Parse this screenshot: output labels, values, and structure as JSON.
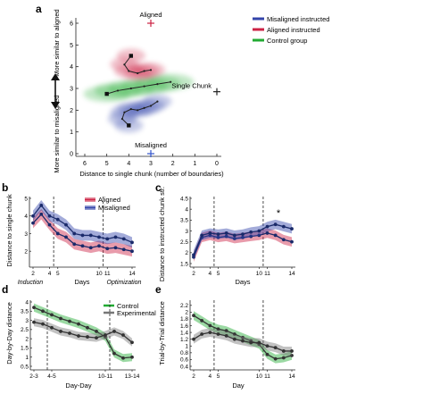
{
  "panel_letters": [
    "a",
    "b",
    "c",
    "d",
    "e"
  ],
  "chart_data": [
    {
      "panel": "a",
      "type": "scatter",
      "xlabel": "Distance to single chunk (number of boundaries)",
      "ylabel_top": "More similar to aligned",
      "ylabel_bottom": "More similar to misaligned",
      "xlim": [
        6,
        0
      ],
      "ylim": [
        0,
        6
      ],
      "xticks": [
        6,
        5,
        4,
        3,
        2,
        1,
        0
      ],
      "yticks": [
        0,
        1,
        2,
        3,
        4,
        5,
        6
      ],
      "markers": [
        {
          "label": "Aligned",
          "x": 3.0,
          "y": 6.0,
          "color": "#cc2244"
        },
        {
          "label": "Single Chunk",
          "x": 0.0,
          "y": 2.85,
          "color": "#222222"
        },
        {
          "label": "Misaligned",
          "x": 3.0,
          "y": 0.0,
          "color": "#3355cc"
        }
      ],
      "series": [
        {
          "name": "Misaligned instructed",
          "color": "#3344aa",
          "x": [
            4.0,
            4.3,
            4.2,
            3.9,
            3.6,
            3.3,
            3.0,
            2.7
          ],
          "y": [
            1.3,
            1.6,
            1.9,
            2.05,
            2.0,
            2.1,
            2.2,
            2.4
          ]
        },
        {
          "name": "Aligned instructed",
          "color": "#cc2244",
          "x": [
            3.9,
            4.2,
            4.0,
            3.6,
            3.3,
            3.0
          ],
          "y": [
            4.5,
            4.1,
            3.8,
            3.7,
            3.8,
            3.85
          ]
        },
        {
          "name": "Control group",
          "color": "#22aa33",
          "x": [
            5.0,
            4.5,
            3.9,
            3.3,
            2.7,
            2.1
          ],
          "y": [
            2.75,
            2.9,
            3.0,
            3.1,
            3.2,
            3.3
          ]
        }
      ]
    },
    {
      "panel": "b",
      "type": "line",
      "ylabel": "Distance to single chunk",
      "xlabel": "Days",
      "x": [
        2,
        3,
        4,
        5,
        6,
        7,
        8,
        9,
        10,
        11,
        12,
        13,
        14
      ],
      "xticks": [
        2,
        4,
        5,
        10,
        11,
        14
      ],
      "ylim": [
        1.3,
        5
      ],
      "yticks": [
        2,
        3,
        4,
        5
      ],
      "dashed_at": [
        4.5,
        10.5
      ],
      "phase_labels": [
        "Induction",
        "Optimization"
      ],
      "series": [
        {
          "name": "Aligned",
          "color": "#cc2244",
          "values": [
            3.6,
            4.1,
            3.5,
            3.0,
            2.8,
            2.4,
            2.3,
            2.2,
            2.3,
            2.15,
            2.2,
            2.1,
            2.0
          ]
        },
        {
          "name": "Misaligned",
          "color": "#3344aa",
          "values": [
            4.0,
            4.6,
            4.0,
            3.8,
            3.5,
            3.0,
            2.9,
            2.9,
            2.8,
            2.7,
            2.8,
            2.7,
            2.5
          ]
        }
      ]
    },
    {
      "panel": "c",
      "type": "line",
      "ylabel": "Distance to instructed chunk str.",
      "xlabel": "Days",
      "x": [
        2,
        3,
        4,
        5,
        6,
        7,
        8,
        9,
        10,
        11,
        12,
        13,
        14
      ],
      "xticks": [
        2,
        4,
        5,
        10,
        11,
        14
      ],
      "ylim": [
        1.5,
        4.5
      ],
      "yticks": [
        1.5,
        2,
        2.5,
        3,
        3.5,
        4,
        4.5
      ],
      "dashed_at": [
        4.5,
        10.5
      ],
      "annotation": "*",
      "series": [
        {
          "name": "Aligned",
          "color": "#cc2244",
          "values": [
            1.8,
            2.7,
            2.8,
            2.7,
            2.75,
            2.65,
            2.7,
            2.75,
            2.8,
            2.9,
            2.8,
            2.6,
            2.5
          ]
        },
        {
          "name": "Misaligned",
          "color": "#3344aa",
          "values": [
            1.9,
            2.8,
            2.9,
            2.85,
            2.9,
            2.8,
            2.85,
            2.95,
            3.0,
            3.2,
            3.3,
            3.2,
            3.1
          ]
        }
      ]
    },
    {
      "panel": "d",
      "type": "line",
      "ylabel": "Day-by-Day distance",
      "xlabel": "Day-Day",
      "xticklabels": [
        "2-3",
        "4-5",
        "10-11",
        "13-14"
      ],
      "xticks": [
        0,
        2,
        8,
        11
      ],
      "x": [
        0,
        1,
        2,
        3,
        4,
        5,
        6,
        7,
        8,
        9,
        10,
        11
      ],
      "ylim": [
        0.5,
        4
      ],
      "yticks": [
        0.5,
        1,
        1.5,
        2,
        2.5,
        3,
        3.5,
        4
      ],
      "dashed_at": [
        1.5,
        8.5
      ],
      "series": [
        {
          "name": "Control",
          "color": "#22aa33",
          "values": [
            3.7,
            3.5,
            3.3,
            3.1,
            2.95,
            2.8,
            2.6,
            2.4,
            2.1,
            1.2,
            0.95,
            1.0
          ]
        },
        {
          "name": "Experimental",
          "color": "#777777",
          "values": [
            2.9,
            2.8,
            2.6,
            2.4,
            2.3,
            2.15,
            2.1,
            2.05,
            2.2,
            2.4,
            2.2,
            1.8
          ]
        }
      ]
    },
    {
      "panel": "e",
      "type": "line",
      "ylabel": "Trial-by-Trial distance",
      "xlabel": "Day",
      "x": [
        2,
        3,
        4,
        5,
        6,
        7,
        8,
        9,
        10,
        11,
        12,
        13,
        14
      ],
      "xticks": [
        2,
        4,
        5,
        10,
        11,
        14
      ],
      "ylim": [
        0.4,
        2.3
      ],
      "yticks": [
        0.4,
        0.6,
        0.8,
        1,
        1.2,
        1.4,
        1.6,
        1.8,
        2,
        2.2
      ],
      "dashed_at": [
        4.5,
        10.5
      ],
      "series": [
        {
          "name": "Control",
          "color": "#22aa33",
          "values": [
            1.9,
            1.75,
            1.6,
            1.5,
            1.45,
            1.35,
            1.25,
            1.15,
            1.05,
            0.75,
            0.62,
            0.65,
            0.72
          ]
        },
        {
          "name": "Experimental",
          "color": "#777777",
          "values": [
            1.2,
            1.35,
            1.4,
            1.35,
            1.3,
            1.2,
            1.15,
            1.1,
            1.1,
            1.0,
            0.95,
            0.85,
            0.85
          ]
        }
      ]
    }
  ]
}
